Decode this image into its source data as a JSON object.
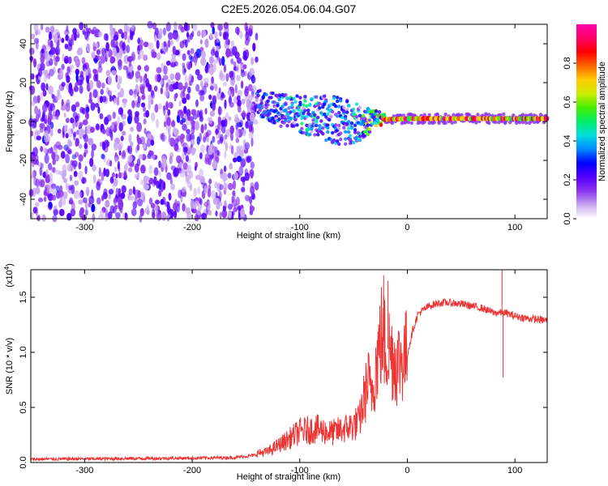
{
  "title": "C2E5.2026.054.06.04.G07",
  "chart_data": [
    {
      "type": "heatmap",
      "name": "spectrogram",
      "xlabel": "Height of straight line (km)",
      "ylabel": "Frequency (Hz)",
      "xlim": [
        -350,
        130
      ],
      "ylim": [
        -50,
        50
      ],
      "xticks": [
        -300,
        -200,
        -100,
        0,
        100
      ],
      "xtick_labels": [
        "-300",
        "-200",
        "-100",
        "0",
        "100"
      ],
      "yticks": [
        -40,
        -20,
        0,
        20,
        40
      ],
      "ytick_labels": [
        "-40",
        "-20",
        "0",
        "20",
        "40"
      ],
      "noise_region": {
        "x_start": -350,
        "x_end": -140,
        "typical_amplitude": 0.15
      },
      "signal_track": {
        "x": [
          -140,
          -120,
          -100,
          -80,
          -60,
          -40,
          -30,
          -20,
          0,
          50,
          100,
          130
        ],
        "freq": [
          10,
          6,
          4,
          2,
          0,
          -1,
          2,
          1,
          1.5,
          1.5,
          1.5,
          1.5
        ],
        "spread": [
          4,
          5,
          6,
          7,
          8,
          5,
          3,
          1.5,
          1.5,
          1.5,
          1.5,
          1.5
        ],
        "amplitude": [
          0.3,
          0.35,
          0.45,
          0.4,
          0.35,
          0.5,
          0.6,
          0.9,
          0.95,
          0.95,
          0.95,
          0.95
        ]
      },
      "colorbar": {
        "label": "Normalized spectral amplitude",
        "ticks": [
          0.0,
          0.2,
          0.4,
          0.6,
          0.8
        ],
        "tick_labels": [
          "0.0",
          "0.2",
          "0.4",
          "0.6",
          "0.8"
        ],
        "range": [
          0,
          1
        ],
        "colors": [
          "#ffffff",
          "#c9a8f0",
          "#8b33ee",
          "#5500ff",
          "#0000ff",
          "#0088ff",
          "#00dddd",
          "#00ee66",
          "#44ee00",
          "#ccee00",
          "#ffcc00",
          "#ff6600",
          "#ff0000",
          "#ff0066",
          "#ff00aa"
        ]
      }
    },
    {
      "type": "line",
      "name": "snr",
      "xlabel": "Height of straight line (km)",
      "ylabel": "SNR (10 * v/v)",
      "scale_label": "(x10",
      "scale_exponent": "4",
      "scale_close": ")",
      "xlim": [
        -350,
        130
      ],
      "ylim": [
        0,
        17500
      ],
      "xticks": [
        -300,
        -200,
        -100,
        0,
        100
      ],
      "xtick_labels": [
        "-300",
        "-200",
        "-100",
        "0",
        "100"
      ],
      "yticks": [
        0,
        5000,
        10000,
        15000
      ],
      "ytick_labels": [
        "0.0",
        "0.5",
        "1.0",
        "1.5"
      ],
      "line_color": "#ee3333",
      "series": [
        {
          "name": "SNR",
          "x": [
            -350,
            -200,
            -160,
            -130,
            -115,
            -100,
            -85,
            -70,
            -55,
            -45,
            -38,
            -32,
            -28,
            -24,
            -20,
            -15,
            -10,
            -5,
            0,
            5,
            10,
            20,
            30,
            40,
            50,
            60,
            70,
            80,
            90,
            100,
            110,
            120,
            130
          ],
          "y": [
            300,
            400,
            450,
            800,
            1500,
            2300,
            2500,
            2200,
            2600,
            3000,
            5500,
            7000,
            9500,
            11500,
            10500,
            10000,
            9000,
            9500,
            9800,
            12000,
            13500,
            14200,
            14500,
            14500,
            14400,
            14200,
            14000,
            13600,
            13600,
            13300,
            13100,
            13000,
            12900
          ]
        }
      ],
      "spikes": [
        {
          "x": -22,
          "y": 17000
        },
        {
          "x": -18,
          "y": 16500
        },
        {
          "x": 88,
          "y": 17500
        },
        {
          "x": 89,
          "y": 7700
        }
      ]
    }
  ]
}
